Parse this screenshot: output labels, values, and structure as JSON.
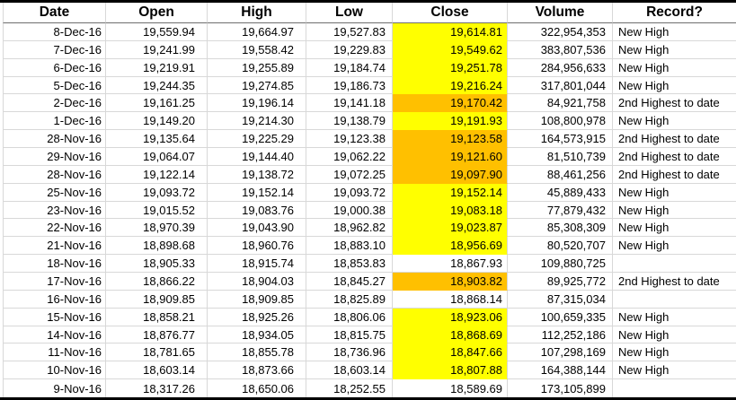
{
  "colors": {
    "highlight_yellow": "#FFFF00",
    "highlight_orange": "#FFC000",
    "gridline": "#D8D8D8",
    "thick_border": "#000000"
  },
  "table": {
    "columns": [
      {
        "key": "date",
        "label": "Date"
      },
      {
        "key": "open",
        "label": "Open"
      },
      {
        "key": "high",
        "label": "High"
      },
      {
        "key": "low",
        "label": "Low"
      },
      {
        "key": "close",
        "label": "Close"
      },
      {
        "key": "volume",
        "label": "Volume"
      },
      {
        "key": "record",
        "label": "Record?"
      }
    ],
    "rows": [
      {
        "date": "8-Dec-16",
        "open": "19,559.94",
        "high": "19,664.97",
        "low": "19,527.83",
        "close": "19,614.81",
        "volume": "322,954,353",
        "record": "New High",
        "close_highlight": "yellow"
      },
      {
        "date": "7-Dec-16",
        "open": "19,241.99",
        "high": "19,558.42",
        "low": "19,229.83",
        "close": "19,549.62",
        "volume": "383,807,536",
        "record": "New High",
        "close_highlight": "yellow"
      },
      {
        "date": "6-Dec-16",
        "open": "19,219.91",
        "high": "19,255.89",
        "low": "19,184.74",
        "close": "19,251.78",
        "volume": "284,956,633",
        "record": "New High",
        "close_highlight": "yellow"
      },
      {
        "date": "5-Dec-16",
        "open": "19,244.35",
        "high": "19,274.85",
        "low": "19,186.73",
        "close": "19,216.24",
        "volume": "317,801,044",
        "record": "New High",
        "close_highlight": "yellow"
      },
      {
        "date": "2-Dec-16",
        "open": "19,161.25",
        "high": "19,196.14",
        "low": "19,141.18",
        "close": "19,170.42",
        "volume": "84,921,758",
        "record": "2nd Highest to date",
        "close_highlight": "orange"
      },
      {
        "date": "1-Dec-16",
        "open": "19,149.20",
        "high": "19,214.30",
        "low": "19,138.79",
        "close": "19,191.93",
        "volume": "108,800,978",
        "record": "New High",
        "close_highlight": "yellow"
      },
      {
        "date": "28-Nov-16",
        "open": "19,135.64",
        "high": "19,225.29",
        "low": "19,123.38",
        "close": "19,123.58",
        "volume": "164,573,915",
        "record": "2nd Highest to date",
        "close_highlight": "orange"
      },
      {
        "date": "29-Nov-16",
        "open": "19,064.07",
        "high": "19,144.40",
        "low": "19,062.22",
        "close": "19,121.60",
        "volume": "81,510,739",
        "record": "2nd Highest to date",
        "close_highlight": "orange"
      },
      {
        "date": "28-Nov-16",
        "open": "19,122.14",
        "high": "19,138.72",
        "low": "19,072.25",
        "close": "19,097.90",
        "volume": "88,461,256",
        "record": "2nd Highest to date",
        "close_highlight": "orange"
      },
      {
        "date": "25-Nov-16",
        "open": "19,093.72",
        "high": "19,152.14",
        "low": "19,093.72",
        "close": "19,152.14",
        "volume": "45,889,433",
        "record": "New High",
        "close_highlight": "yellow"
      },
      {
        "date": "23-Nov-16",
        "open": "19,015.52",
        "high": "19,083.76",
        "low": "19,000.38",
        "close": "19,083.18",
        "volume": "77,879,432",
        "record": "New High",
        "close_highlight": "yellow"
      },
      {
        "date": "22-Nov-16",
        "open": "18,970.39",
        "high": "19,043.90",
        "low": "18,962.82",
        "close": "19,023.87",
        "volume": "85,308,309",
        "record": "New High",
        "close_highlight": "yellow"
      },
      {
        "date": "21-Nov-16",
        "open": "18,898.68",
        "high": "18,960.76",
        "low": "18,883.10",
        "close": "18,956.69",
        "volume": "80,520,707",
        "record": "New High",
        "close_highlight": "yellow"
      },
      {
        "date": "18-Nov-16",
        "open": "18,905.33",
        "high": "18,915.74",
        "low": "18,853.83",
        "close": "18,867.93",
        "volume": "109,880,725",
        "record": "",
        "close_highlight": "none"
      },
      {
        "date": "17-Nov-16",
        "open": "18,866.22",
        "high": "18,904.03",
        "low": "18,845.27",
        "close": "18,903.82",
        "volume": "89,925,772",
        "record": "2nd Highest to date",
        "close_highlight": "orange"
      },
      {
        "date": "16-Nov-16",
        "open": "18,909.85",
        "high": "18,909.85",
        "low": "18,825.89",
        "close": "18,868.14",
        "volume": "87,315,034",
        "record": "",
        "close_highlight": "none"
      },
      {
        "date": "15-Nov-16",
        "open": "18,858.21",
        "high": "18,925.26",
        "low": "18,806.06",
        "close": "18,923.06",
        "volume": "100,659,335",
        "record": "New High",
        "close_highlight": "yellow"
      },
      {
        "date": "14-Nov-16",
        "open": "18,876.77",
        "high": "18,934.05",
        "low": "18,815.75",
        "close": "18,868.69",
        "volume": "112,252,186",
        "record": "New High",
        "close_highlight": "yellow"
      },
      {
        "date": "11-Nov-16",
        "open": "18,781.65",
        "high": "18,855.78",
        "low": "18,736.96",
        "close": "18,847.66",
        "volume": "107,298,169",
        "record": "New High",
        "close_highlight": "yellow"
      },
      {
        "date": "10-Nov-16",
        "open": "18,603.14",
        "high": "18,873.66",
        "low": "18,603.14",
        "close": "18,807.88",
        "volume": "164,388,144",
        "record": "New High",
        "close_highlight": "yellow"
      },
      {
        "date": "9-Nov-16",
        "open": "18,317.26",
        "high": "18,650.06",
        "low": "18,252.55",
        "close": "18,589.69",
        "volume": "173,105,899",
        "record": "",
        "close_highlight": "none"
      }
    ]
  }
}
